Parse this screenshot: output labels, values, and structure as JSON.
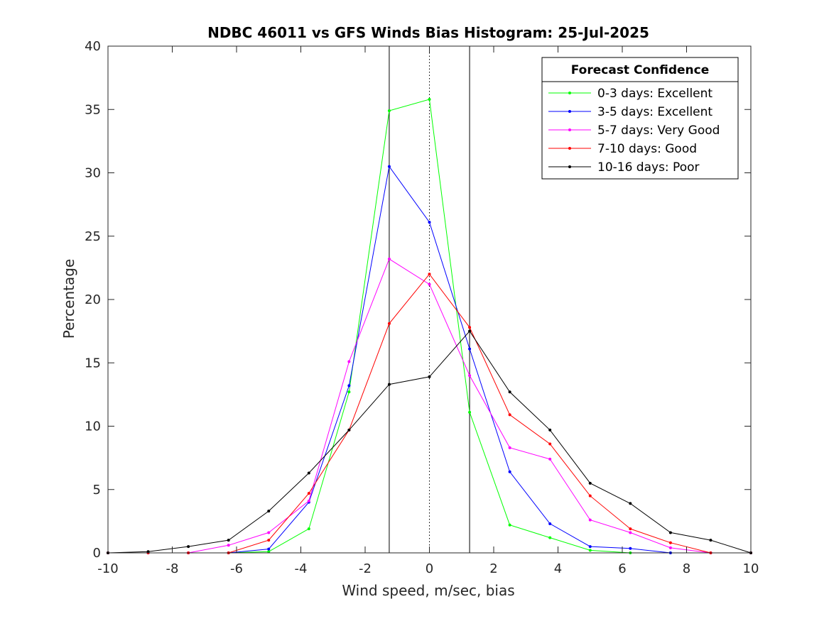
{
  "chart_data": {
    "type": "line",
    "title": "NDBC 46011 vs GFS Winds Bias Histogram: 25-Jul-2025",
    "xlabel": "Wind speed, m/sec, bias",
    "ylabel": "Percentage",
    "xlim": [
      -10,
      10
    ],
    "ylim": [
      0,
      40
    ],
    "xticks": [
      -10,
      -8,
      -6,
      -4,
      -2,
      0,
      2,
      4,
      6,
      8,
      10
    ],
    "yticks": [
      0,
      5,
      10,
      15,
      20,
      25,
      30,
      35,
      40
    ],
    "grid": false,
    "x": [
      -10,
      -8.75,
      -7.5,
      -6.25,
      -5,
      -3.75,
      -2.5,
      -1.25,
      0,
      1.25,
      2.5,
      3.75,
      5,
      6.25,
      7.5,
      8.75,
      10
    ],
    "reference_lines": [
      {
        "x": -1.25,
        "style": "solid",
        "color": "#000000"
      },
      {
        "x": 0,
        "style": "dotted",
        "color": "#000000"
      },
      {
        "x": 1.25,
        "style": "solid",
        "color": "#000000"
      }
    ],
    "legend": {
      "title": "Forecast Confidence",
      "location": "top-right"
    },
    "series": [
      {
        "name": "0-3 days: Excellent",
        "color": "#00ff00",
        "values": [
          0,
          0,
          0,
          0,
          0.1,
          1.9,
          12.7,
          34.9,
          35.8,
          11.1,
          2.2,
          1.2,
          0.2,
          0,
          0,
          0,
          0
        ]
      },
      {
        "name": "3-5 days: Excellent",
        "color": "#0000ff",
        "values": [
          0,
          0,
          0,
          0,
          0.3,
          4.0,
          13.2,
          30.5,
          26.1,
          16.1,
          6.4,
          2.3,
          0.5,
          0.35,
          0,
          0,
          0
        ]
      },
      {
        "name": "5-7 days: Very Good",
        "color": "#ff00ff",
        "values": [
          0,
          0,
          0,
          0.6,
          1.6,
          4.1,
          15.1,
          23.2,
          21.2,
          14.0,
          8.3,
          7.4,
          2.6,
          1.6,
          0.4,
          0,
          0
        ]
      },
      {
        "name": "7-10 days: Good",
        "color": "#ff0000",
        "values": [
          0,
          0,
          0,
          0,
          1.0,
          4.7,
          9.7,
          18.1,
          22.0,
          17.8,
          10.9,
          8.6,
          4.5,
          1.9,
          0.8,
          0,
          0
        ]
      },
      {
        "name": "10-16 days: Poor",
        "color": "#000000",
        "values": [
          0,
          0.1,
          0.5,
          1.0,
          3.3,
          6.3,
          9.7,
          13.3,
          13.9,
          17.5,
          12.7,
          9.7,
          5.5,
          3.9,
          1.6,
          1.0,
          0
        ]
      }
    ]
  }
}
